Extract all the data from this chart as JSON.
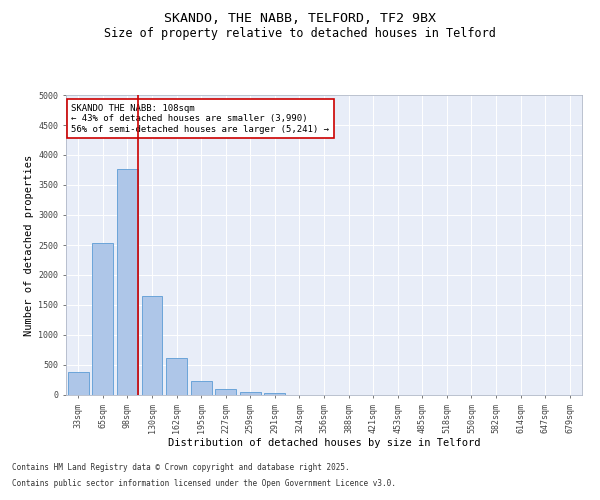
{
  "title1": "SKANDO, THE NABB, TELFORD, TF2 9BX",
  "title2": "Size of property relative to detached houses in Telford",
  "xlabel": "Distribution of detached houses by size in Telford",
  "ylabel": "Number of detached properties",
  "categories": [
    "33sqm",
    "65sqm",
    "98sqm",
    "130sqm",
    "162sqm",
    "195sqm",
    "227sqm",
    "259sqm",
    "291sqm",
    "324sqm",
    "356sqm",
    "388sqm",
    "421sqm",
    "453sqm",
    "485sqm",
    "518sqm",
    "550sqm",
    "582sqm",
    "614sqm",
    "647sqm",
    "679sqm"
  ],
  "values": [
    380,
    2530,
    3760,
    1650,
    620,
    230,
    100,
    55,
    40,
    0,
    0,
    0,
    0,
    0,
    0,
    0,
    0,
    0,
    0,
    0,
    0
  ],
  "bar_color": "#aec6e8",
  "bar_edge_color": "#5b9bd5",
  "vline_color": "#cc0000",
  "annotation_text": "SKANDO THE NABB: 108sqm\n← 43% of detached houses are smaller (3,990)\n56% of semi-detached houses are larger (5,241) →",
  "annotation_box_color": "#ffffff",
  "annotation_box_edge": "#cc0000",
  "ylim": [
    0,
    5000
  ],
  "yticks": [
    0,
    500,
    1000,
    1500,
    2000,
    2500,
    3000,
    3500,
    4000,
    4500,
    5000
  ],
  "background_color": "#e8edf8",
  "grid_color": "#ffffff",
  "footer1": "Contains HM Land Registry data © Crown copyright and database right 2025.",
  "footer2": "Contains public sector information licensed under the Open Government Licence v3.0.",
  "title_fontsize": 9.5,
  "subtitle_fontsize": 8.5,
  "tick_fontsize": 6,
  "ylabel_fontsize": 7.5,
  "xlabel_fontsize": 7.5,
  "footer_fontsize": 5.5,
  "annot_fontsize": 6.5
}
